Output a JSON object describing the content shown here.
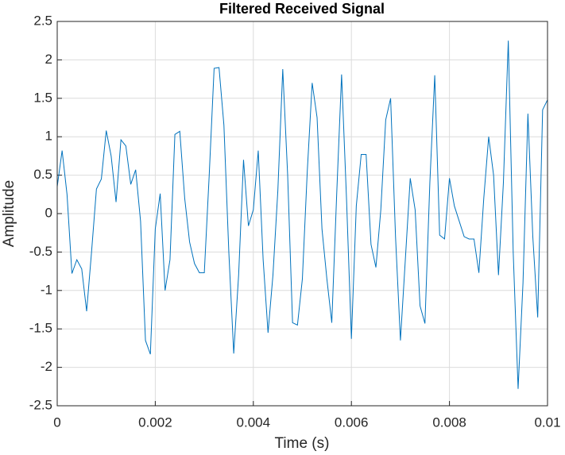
{
  "chart_data": {
    "type": "line",
    "title": "Filtered Received Signal",
    "x_label": "Time (s)",
    "y_label": "Amplitude",
    "x": [
      0,
      0.0001,
      0.0002,
      0.0003,
      0.0004,
      0.0005,
      0.0006,
      0.0007,
      0.0008,
      0.0009,
      0.001,
      0.0011,
      0.0012,
      0.0013,
      0.0014,
      0.0015,
      0.0016,
      0.0017,
      0.0018,
      0.0019,
      0.002,
      0.0021,
      0.0022,
      0.0023,
      0.0024,
      0.0025,
      0.0026,
      0.0027,
      0.0028,
      0.0029,
      0.003,
      0.0031,
      0.0032,
      0.0033,
      0.0034,
      0.0035,
      0.0036,
      0.0037,
      0.0038,
      0.0039,
      0.004,
      0.0041,
      0.0042,
      0.0043,
      0.0044,
      0.0045,
      0.0046,
      0.0047,
      0.0048,
      0.0049,
      0.005,
      0.0051,
      0.0052,
      0.0053,
      0.0054,
      0.0055,
      0.0056,
      0.0057,
      0.0058,
      0.0059,
      0.006,
      0.0061,
      0.0062,
      0.0063,
      0.0064,
      0.0065,
      0.0066,
      0.0067,
      0.0068,
      0.0069,
      0.007,
      0.0071,
      0.0072,
      0.0073,
      0.0074,
      0.0075,
      0.0076,
      0.0077,
      0.0078,
      0.0079,
      0.008,
      0.0081,
      0.0082,
      0.0083,
      0.0084,
      0.0085,
      0.0086,
      0.0087,
      0.0088,
      0.0089,
      0.009,
      0.0091,
      0.0092,
      0.0093,
      0.0094,
      0.0095,
      0.0096,
      0.0097,
      0.0098,
      0.0099,
      0.01
    ],
    "series": [
      {
        "color": "#0072bd",
        "values": [
          0.35,
          0.82,
          0.25,
          -0.78,
          -0.6,
          -0.72,
          -1.27,
          -0.5,
          0.32,
          0.45,
          1.08,
          0.75,
          0.15,
          0.96,
          0.88,
          0.38,
          0.57,
          -0.1,
          -1.65,
          -1.83,
          -0.2,
          0.26,
          -1.0,
          -0.6,
          1.03,
          1.07,
          0.2,
          -0.37,
          -0.65,
          -0.77,
          -0.77,
          0.5,
          1.89,
          1.9,
          1.15,
          -0.5,
          -1.82,
          -0.8,
          0.7,
          -0.16,
          0.05,
          0.82,
          -0.6,
          -1.55,
          -0.8,
          0.3,
          1.88,
          0.5,
          -1.42,
          -1.45,
          -0.85,
          0.55,
          1.7,
          1.25,
          -0.2,
          -0.85,
          -1.42,
          0.25,
          1.81,
          0.2,
          -1.63,
          0.1,
          0.77,
          0.77,
          -0.4,
          -0.7,
          0.05,
          1.22,
          1.5,
          -0.3,
          -1.65,
          -0.6,
          0.46,
          0.05,
          -1.2,
          -1.43,
          0.4,
          1.8,
          -0.28,
          -0.33,
          0.46,
          0.1,
          -0.1,
          -0.3,
          -0.33,
          -0.33,
          -0.77,
          0.2,
          1.0,
          0.5,
          -0.8,
          0.4,
          2.25,
          -0.5,
          -2.28,
          -0.9,
          1.3,
          -0.3,
          -1.35,
          1.35,
          1.48
        ]
      }
    ],
    "xlim": [
      0,
      0.01
    ],
    "xticks": [
      0,
      0.002,
      0.004,
      0.006,
      0.008,
      0.01
    ],
    "ylim": [
      -2.5,
      2.5
    ],
    "yticks": [
      -2.5,
      -2,
      -1.5,
      -1,
      -0.5,
      0,
      0.5,
      1,
      1.5,
      2,
      2.5
    ],
    "grid": true
  }
}
